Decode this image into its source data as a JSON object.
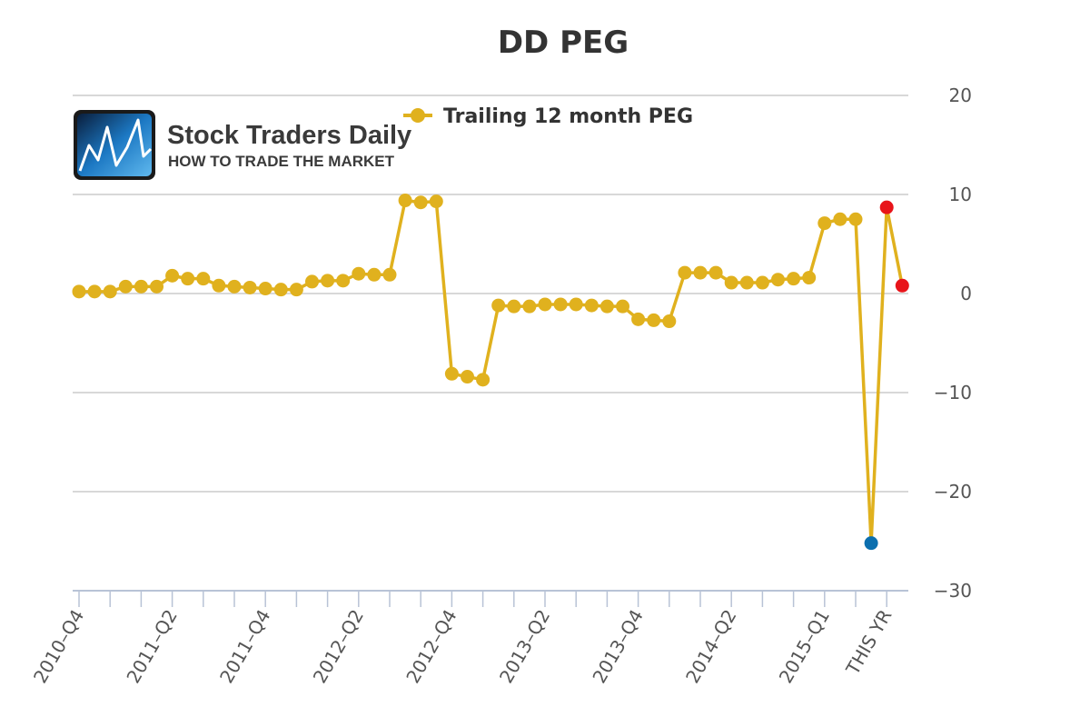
{
  "chart_data": {
    "type": "line",
    "title": "DD PEG",
    "xlabel": "",
    "ylabel": "",
    "ylim": [
      -30,
      20
    ],
    "yticks": [
      20,
      10,
      0,
      -10,
      -20,
      -30
    ],
    "ytick_labels": [
      "20",
      "10",
      "0",
      "−10",
      "−20",
      "−30"
    ],
    "x_tick_labels": [
      "2010–Q4",
      "2011–Q2",
      "2011–Q4",
      "2012–Q2",
      "2012–Q4",
      "2013–Q2",
      "2013–Q4",
      "2014–Q2",
      "2015–Q1",
      "THIS YR"
    ],
    "x_tick_label_index": [
      0,
      6,
      12,
      18,
      24,
      30,
      36,
      42,
      48,
      52
    ],
    "grid": true,
    "legend_position": "top",
    "series": [
      {
        "name": "Trailing 12 month PEG",
        "color": "#e0b11e",
        "values": [
          0.2,
          0.2,
          0.2,
          0.7,
          0.7,
          0.7,
          1.8,
          1.5,
          1.5,
          0.8,
          0.7,
          0.6,
          0.5,
          0.4,
          0.4,
          1.2,
          1.3,
          1.3,
          2.0,
          1.9,
          1.9,
          9.4,
          9.2,
          9.3,
          -8.1,
          -8.4,
          -8.7,
          -1.2,
          -1.3,
          -1.3,
          -1.1,
          -1.1,
          -1.1,
          -1.2,
          -1.3,
          -1.3,
          -2.6,
          -2.7,
          -2.8,
          2.1,
          2.1,
          2.1,
          1.1,
          1.1,
          1.1,
          1.4,
          1.5,
          1.6,
          7.1,
          7.5,
          7.5,
          -25.2,
          8.7,
          0.8
        ],
        "highlights": [
          {
            "index": 51,
            "color": "#0b6faf"
          },
          {
            "index": 52,
            "color": "#e8141a"
          },
          {
            "index": 53,
            "color": "#e8141a"
          }
        ]
      }
    ]
  },
  "logo": {
    "name": "Stock Traders Daily",
    "tagline": "HOW TO TRADE THE MARKET",
    "icon": "stock-chart-logo-icon"
  }
}
